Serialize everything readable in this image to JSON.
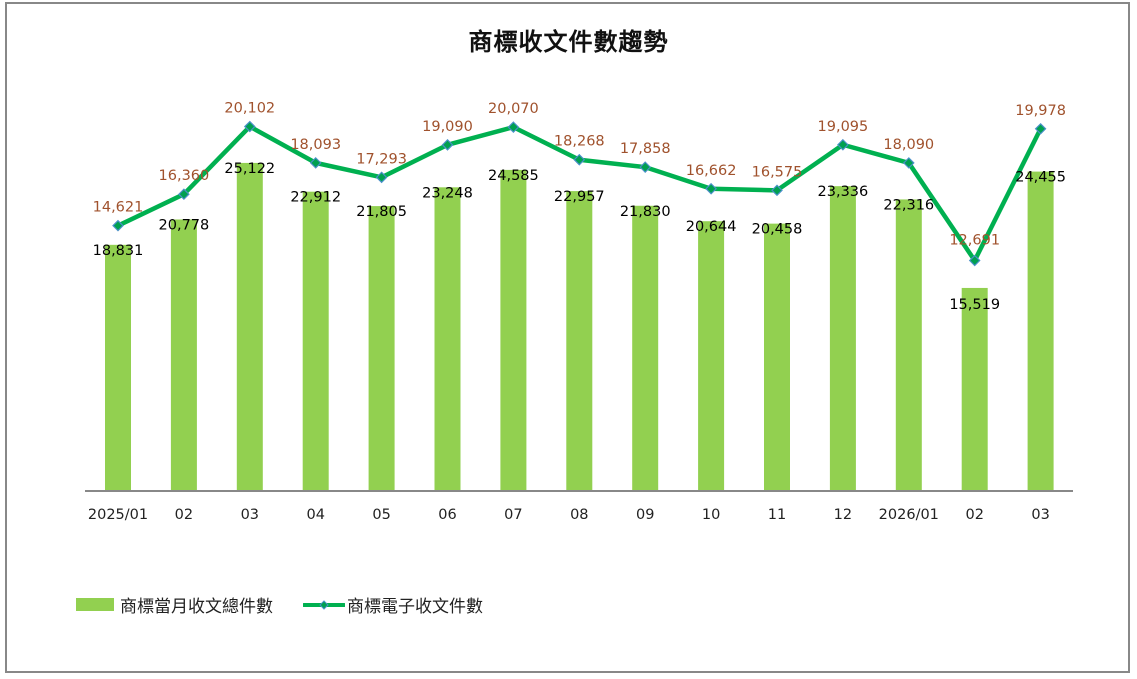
{
  "chart_data": {
    "type": "bar+line",
    "title": "商標收文件數趨勢",
    "categories": [
      "2025/01",
      "02",
      "03",
      "04",
      "05",
      "06",
      "07",
      "08",
      "09",
      "10",
      "11",
      "12",
      "2026/01",
      "02",
      "03"
    ],
    "series": [
      {
        "name": "商標當月收文總件數",
        "type": "bar",
        "color": "#92d050",
        "label_color": "#000000",
        "values": [
          18831,
          20778,
          25122,
          22912,
          21805,
          23248,
          24585,
          22957,
          21830,
          20644,
          20458,
          23336,
          22316,
          15519,
          24455
        ],
        "labels": [
          "18,831",
          "20,778",
          "25,122",
          "22,912",
          "21,805",
          "23,248",
          "24,585",
          "22,957",
          "21,830",
          "20,644",
          "20,458",
          "23,336",
          "22,316",
          "15,519",
          "24,455"
        ]
      },
      {
        "name": "商標電子收文件數",
        "type": "line",
        "color": "#00b050",
        "marker_color": "#4a90c8",
        "label_color": "#a0522d",
        "values": [
          14621,
          16360,
          20102,
          18093,
          17293,
          19090,
          20070,
          18268,
          17858,
          16662,
          16575,
          19095,
          18090,
          12691,
          19978
        ],
        "labels": [
          "14,621",
          "16,360",
          "20,102",
          "18,093",
          "17,293",
          "19,090",
          "20,070",
          "18,268",
          "17,858",
          "16,662",
          "16,575",
          "19,095",
          "18,090",
          "12,691",
          "19,978"
        ]
      }
    ],
    "xlabel": "",
    "ylabel": "",
    "grid": false,
    "legend_position": "bottom-left"
  },
  "legend": {
    "bar_label": "商標當月收文總件數",
    "line_label": "商標電子收文件數"
  }
}
